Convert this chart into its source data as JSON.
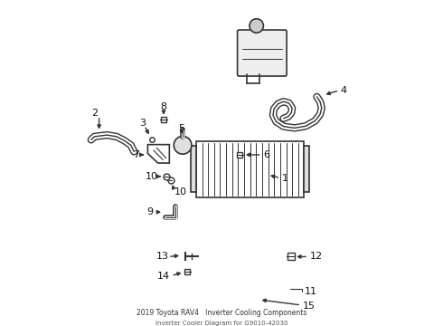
{
  "title": "",
  "background_color": "#ffffff",
  "line_color": "#333333",
  "label_color": "#222222",
  "fig_width": 4.9,
  "fig_height": 3.6,
  "dpi": 100
}
